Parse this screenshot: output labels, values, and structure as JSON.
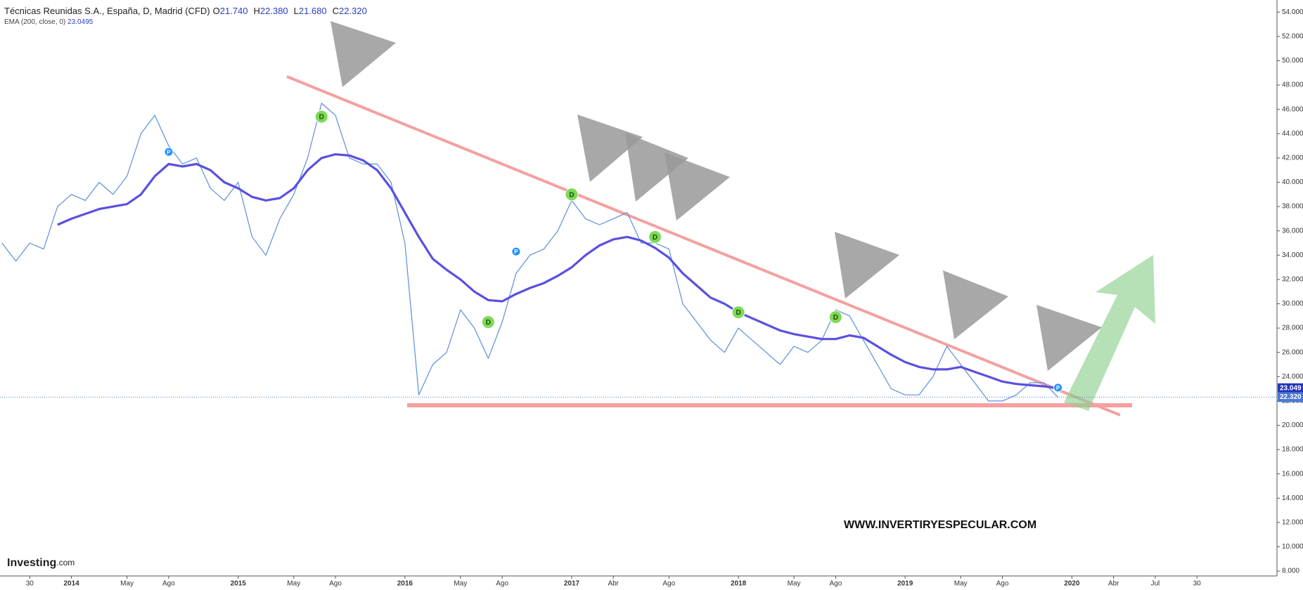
{
  "chart_data": {
    "type": "line",
    "title": "Técnicas Reunidas S.A., España, D, Madrid (CFD)",
    "ohlc": [
      {
        "name": "O",
        "value": 21.74,
        "label": "21.740"
      },
      {
        "name": "H",
        "value": 22.38,
        "label": "22.380"
      },
      {
        "name": "L",
        "value": 21.68,
        "label": "21.680"
      },
      {
        "name": "C",
        "value": 22.32,
        "label": "22.320"
      }
    ],
    "indicator": {
      "name": "EMA (200, close, 0)",
      "value": 23.0495
    },
    "x": [
      "2013-08",
      "2013-09",
      "2013-10",
      "2013-11",
      "2013-12",
      "2014-01",
      "2014-02",
      "2014-03",
      "2014-04",
      "2014-05",
      "2014-06",
      "2014-07",
      "2014-08",
      "2014-09",
      "2014-10",
      "2014-11",
      "2014-12",
      "2015-01",
      "2015-02",
      "2015-03",
      "2015-04",
      "2015-05",
      "2015-06",
      "2015-07",
      "2015-08",
      "2015-09",
      "2015-10",
      "2015-11",
      "2015-12",
      "2016-01",
      "2016-02",
      "2016-03",
      "2016-04",
      "2016-05",
      "2016-06",
      "2016-07",
      "2016-08",
      "2016-09",
      "2016-10",
      "2016-11",
      "2016-12",
      "2017-01",
      "2017-02",
      "2017-03",
      "2017-04",
      "2017-05",
      "2017-06",
      "2017-07",
      "2017-08",
      "2017-09",
      "2017-10",
      "2017-11",
      "2017-12",
      "2018-01",
      "2018-02",
      "2018-03",
      "2018-04",
      "2018-05",
      "2018-06",
      "2018-07",
      "2018-08",
      "2018-09",
      "2018-10",
      "2018-11",
      "2018-12",
      "2019-01",
      "2019-02",
      "2019-03",
      "2019-04",
      "2019-05",
      "2019-06",
      "2019-07",
      "2019-08",
      "2019-09",
      "2019-10",
      "2019-11",
      "2019-12"
    ],
    "series": [
      {
        "name": "Técnicas Reunidas S.A.",
        "color": "#5b8fd9",
        "values": [
          35,
          33.5,
          35,
          34.5,
          38,
          39,
          38.5,
          40,
          39,
          40.5,
          44,
          45.5,
          43,
          41.5,
          42,
          39.5,
          38.5,
          40,
          35.5,
          34,
          37,
          39,
          42,
          46.5,
          45.5,
          42,
          41.5,
          41.5,
          40,
          35,
          22.5,
          25,
          26,
          29.5,
          28,
          25.5,
          28.5,
          32.5,
          34,
          34.5,
          36,
          38.5,
          37,
          36.5,
          37,
          37.5,
          35,
          35,
          34.5,
          30,
          28.5,
          27,
          26,
          28,
          27,
          26,
          25,
          26.5,
          26,
          27,
          29.5,
          29,
          27,
          25,
          23,
          22.5,
          22.5,
          24,
          26.5,
          25,
          23.5,
          22,
          22,
          22.5,
          23.5,
          23.5,
          22.3
        ]
      },
      {
        "name": "EMA (200, close, 0)",
        "color": "#5a50e0",
        "values": [
          null,
          null,
          null,
          null,
          36.5,
          37,
          37.4,
          37.8,
          38,
          38.2,
          39,
          40.5,
          41.5,
          41.3,
          41.5,
          41,
          40,
          39.5,
          38.8,
          38.5,
          38.7,
          39.5,
          41,
          42,
          42.3,
          42.2,
          41.8,
          41,
          39.5,
          37.5,
          35.5,
          33.7,
          32.8,
          32,
          31,
          30.3,
          30.2,
          30.8,
          31.3,
          31.7,
          32.3,
          33,
          34,
          34.8,
          35.3,
          35.5,
          35.2,
          34.6,
          33.8,
          32.5,
          31.5,
          30.5,
          30,
          29.3,
          28.8,
          28.3,
          27.8,
          27.5,
          27.3,
          27.1,
          27.1,
          27.4,
          27.2,
          26.5,
          25.8,
          25.2,
          24.8,
          24.6,
          24.6,
          24.8,
          24.4,
          24,
          23.6,
          23.4,
          23.3,
          23.2,
          23.05
        ]
      }
    ],
    "markers": [
      {
        "label": "P",
        "x": "2014-08",
        "y": 42.5
      },
      {
        "label": "D",
        "x": "2015-07",
        "y": 45.4
      },
      {
        "label": "D",
        "x": "2016-07",
        "y": 28.5
      },
      {
        "label": "P",
        "x": "2016-09",
        "y": 34.3
      },
      {
        "label": "D",
        "x": "2017-01",
        "y": 39
      },
      {
        "label": "D",
        "x": "2017-07",
        "y": 35.5
      },
      {
        "label": "D",
        "x": "2018-01",
        "y": 29.3
      },
      {
        "label": "D",
        "x": "2018-08",
        "y": 28.9
      },
      {
        "label": "P",
        "x": "2019-12",
        "y": 23.1
      }
    ],
    "price_labels": [
      {
        "value": 23.049,
        "label": "23.049",
        "color": "#2233bb"
      },
      {
        "value": 22.32,
        "label": "22.320",
        "color": "#4a78d4"
      }
    ],
    "ylim": [
      7.6,
      55
    ],
    "yticks": [
      {
        "value": 8,
        "label": "8.000"
      },
      {
        "value": 10,
        "label": "10.000"
      },
      {
        "value": 12,
        "label": "12.000"
      },
      {
        "value": 14,
        "label": "14.000"
      },
      {
        "value": 16,
        "label": "16.000"
      },
      {
        "value": 18,
        "label": "18.000"
      },
      {
        "value": 20,
        "label": "20.000"
      },
      {
        "value": 22,
        "label": "22.000"
      },
      {
        "value": 24,
        "label": "24.000"
      },
      {
        "value": 26,
        "label": "26.000"
      },
      {
        "value": 28,
        "label": "28.000"
      },
      {
        "value": 30,
        "label": "30.000"
      },
      {
        "value": 32,
        "label": "32.000"
      },
      {
        "value": 34,
        "label": "34.000"
      },
      {
        "value": 36,
        "label": "36.000"
      },
      {
        "value": 38,
        "label": "38.000"
      },
      {
        "value": 40,
        "label": "40.000"
      },
      {
        "value": 42,
        "label": "42.000"
      },
      {
        "value": 44,
        "label": "44.000"
      },
      {
        "value": 46,
        "label": "46.000"
      },
      {
        "value": 48,
        "label": "48.000"
      },
      {
        "value": 50,
        "label": "50.000"
      },
      {
        "value": 52,
        "label": "52.000"
      },
      {
        "value": 54,
        "label": "54.000"
      }
    ],
    "xticks": [
      {
        "value": "2013-10",
        "label": "30"
      },
      {
        "value": "2014-01",
        "label": "2014"
      },
      {
        "value": "2014-05",
        "label": "May"
      },
      {
        "value": "2014-08",
        "label": "Ago"
      },
      {
        "value": "2015-01",
        "label": "2015"
      },
      {
        "value": "2015-05",
        "label": "May"
      },
      {
        "value": "2015-08",
        "label": "Ago"
      },
      {
        "value": "2016-01",
        "label": "2016"
      },
      {
        "value": "2016-05",
        "label": "May"
      },
      {
        "value": "2016-08",
        "label": "Ago"
      },
      {
        "value": "2017-01",
        "label": "2017"
      },
      {
        "value": "2017-04",
        "label": "Abr"
      },
      {
        "value": "2017-08",
        "label": "Ago"
      },
      {
        "value": "2018-01",
        "label": "2018"
      },
      {
        "value": "2018-05",
        "label": "May"
      },
      {
        "value": "2018-08",
        "label": "Ago"
      },
      {
        "value": "2019-01",
        "label": "2019"
      },
      {
        "value": "2019-05",
        "label": "May"
      },
      {
        "value": "2019-08",
        "label": "Ago"
      },
      {
        "value": "2020-01",
        "label": "2020"
      },
      {
        "value": "2020-04",
        "label": "Abr"
      },
      {
        "value": "2020-07",
        "label": "Jul"
      },
      {
        "value": "2020-10",
        "label": "30"
      }
    ],
    "watermark": "WWW.INVERTIRYESPECULAR.COM",
    "logo": [
      "Investing",
      ".com"
    ]
  }
}
